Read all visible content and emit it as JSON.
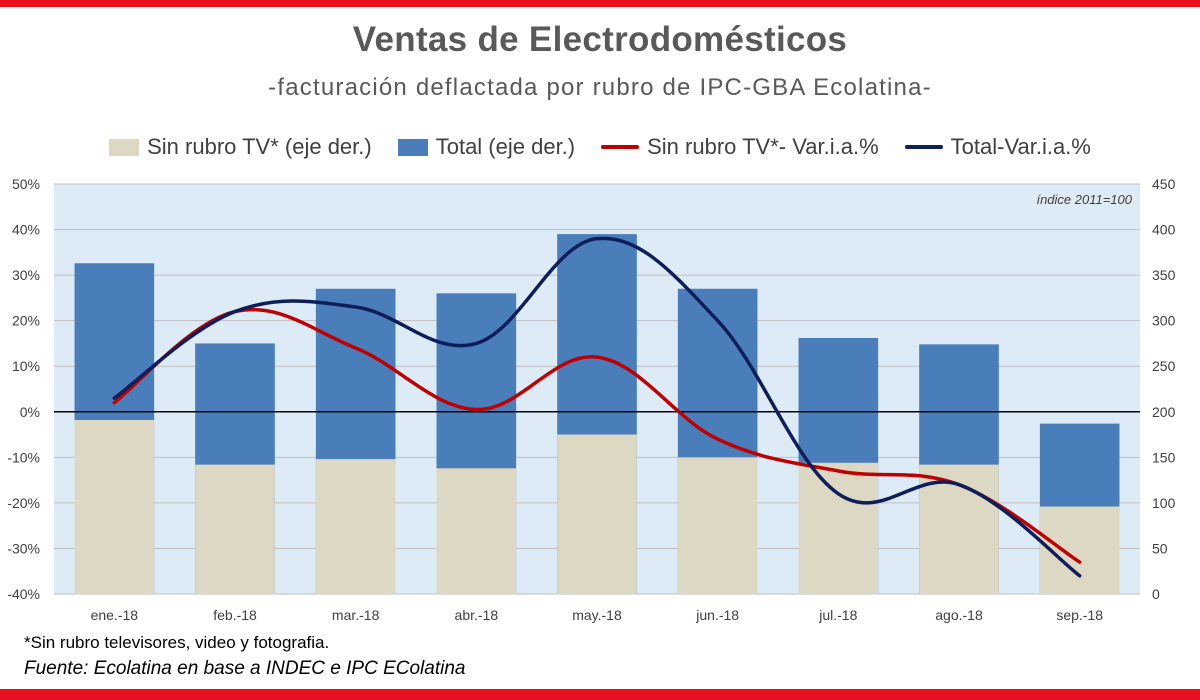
{
  "title": "Ventas de Electrodomésticos",
  "subtitle": "-facturación deflactada por rubro de IPC-GBA Ecolatina-",
  "legend": {
    "bar_sin_tv": "Sin rubro TV* (eje der.)",
    "bar_total": "Total (eje der.)",
    "line_sin_tv": "Sin rubro TV*- Var.i.a.%",
    "line_total": "Total-Var.i.a.%"
  },
  "colors": {
    "bar_sin_tv": "#ddd8c4",
    "bar_total": "#4a7ebb",
    "line_sin_tv": "#c00000",
    "line_total": "#0d1e5b",
    "plot_bg": "#ddebf7",
    "grid": "#bfbfbf",
    "frame": "#e8101e"
  },
  "annotation": "índice 2011=100",
  "footnote": "*Sin rubro televisores, video y fotografia.",
  "source": "Fuente: Ecolatina en base a INDEC e IPC EColatina",
  "chart_data": {
    "type": "bar",
    "title": "Ventas de Electrodomésticos",
    "subtitle": "-facturación deflactada por rubro de IPC-GBA Ecolatina-",
    "categories": [
      "ene.-18",
      "feb.-18",
      "mar.-18",
      "abr.-18",
      "may.-18",
      "jun.-18",
      "jul.-18",
      "ago.-18",
      "sep.-18"
    ],
    "series": [
      {
        "name": "Sin rubro TV* (eje der.)",
        "type": "bar",
        "axis": "right",
        "values": [
          191,
          142,
          148,
          138,
          175,
          150,
          144,
          142,
          96
        ]
      },
      {
        "name": "Total (eje der.)",
        "type": "bar",
        "axis": "right",
        "values": [
          363,
          275,
          335,
          330,
          395,
          335,
          281,
          274,
          187
        ]
      },
      {
        "name": "Sin rubro TV*- Var.i.a.%",
        "type": "line",
        "axis": "left",
        "values": [
          2,
          22,
          14,
          0.5,
          12,
          -6,
          -13,
          -16,
          -33
        ]
      },
      {
        "name": "Total-Var.i.a.%",
        "type": "line",
        "axis": "left",
        "values": [
          3,
          22,
          23,
          15,
          38,
          20,
          -18,
          -16,
          -36
        ]
      }
    ],
    "y_left": {
      "min": -40,
      "max": 50,
      "step": 10,
      "ticks": [
        "-40%",
        "-30%",
        "-20%",
        "-10%",
        "0%",
        "10%",
        "20%",
        "30%",
        "40%",
        "50%"
      ]
    },
    "y_right": {
      "min": 0,
      "max": 450,
      "step": 50,
      "ticks": [
        "0",
        "50",
        "100",
        "150",
        "200",
        "250",
        "300",
        "350",
        "400",
        "450"
      ]
    },
    "xlabel": "",
    "ylabel": "",
    "legend_position": "top",
    "grid": true
  }
}
